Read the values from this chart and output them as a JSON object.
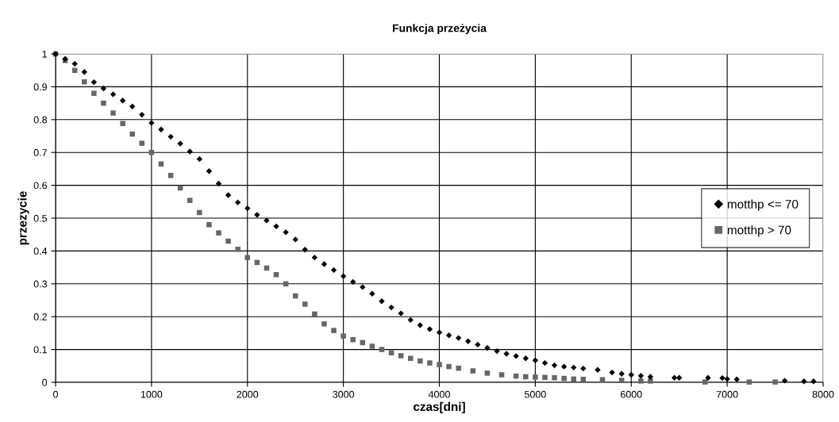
{
  "chart_data": {
    "type": "scatter",
    "title": "Funkcja przeżycia",
    "xlabel": "czas[dni]",
    "ylabel": "przezycie",
    "xlim": [
      0,
      8000
    ],
    "xticks": [
      0,
      1000,
      2000,
      3000,
      4000,
      5000,
      6000,
      7000,
      8000
    ],
    "ylim": [
      0,
      1
    ],
    "yticks": [
      0,
      0.1,
      0.2,
      0.3,
      0.4,
      0.5,
      0.6,
      0.7,
      0.8,
      0.9,
      1
    ],
    "grid": true,
    "legend": "right",
    "series": [
      {
        "name": "motthp <= 70",
        "color": "#000000",
        "marker": "diamond",
        "x": [
          0,
          100,
          200,
          300,
          400,
          500,
          600,
          700,
          800,
          900,
          1000,
          1100,
          1200,
          1300,
          1400,
          1500,
          1600,
          1700,
          1800,
          1900,
          2000,
          2100,
          2200,
          2300,
          2400,
          2500,
          2600,
          2700,
          2800,
          2900,
          3000,
          3100,
          3200,
          3300,
          3400,
          3500,
          3600,
          3700,
          3800,
          3900,
          4000,
          4100,
          4200,
          4300,
          4400,
          4500,
          4600,
          4700,
          4800,
          4900,
          5000,
          5100,
          5200,
          5300,
          5400,
          5500,
          5650,
          5800,
          5900,
          6000,
          6100,
          6200,
          6450,
          6500,
          6800,
          6950,
          7000,
          7100,
          7600,
          7800,
          7900
        ],
        "values": [
          1,
          0.985,
          0.97,
          0.945,
          0.914,
          0.895,
          0.877,
          0.858,
          0.84,
          0.815,
          0.79,
          0.77,
          0.748,
          0.727,
          0.703,
          0.68,
          0.643,
          0.605,
          0.57,
          0.548,
          0.53,
          0.51,
          0.493,
          0.475,
          0.457,
          0.435,
          0.404,
          0.38,
          0.36,
          0.342,
          0.323,
          0.306,
          0.29,
          0.27,
          0.247,
          0.228,
          0.21,
          0.19,
          0.174,
          0.162,
          0.152,
          0.143,
          0.135,
          0.125,
          0.115,
          0.105,
          0.095,
          0.087,
          0.08,
          0.073,
          0.067,
          0.059,
          0.052,
          0.048,
          0.045,
          0.042,
          0.038,
          0.03,
          0.026,
          0.023,
          0.02,
          0.017,
          0.014,
          0.014,
          0.014,
          0.013,
          0.01,
          0.009,
          0.005,
          0.003,
          0.003
        ]
      },
      {
        "name": "motthp > 70",
        "color": "#666666",
        "marker": "square",
        "x": [
          0,
          100,
          200,
          300,
          400,
          500,
          600,
          700,
          800,
          900,
          1000,
          1100,
          1200,
          1300,
          1400,
          1500,
          1600,
          1700,
          1800,
          1900,
          2000,
          2100,
          2200,
          2300,
          2400,
          2500,
          2600,
          2700,
          2800,
          2900,
          3000,
          3100,
          3200,
          3300,
          3400,
          3500,
          3600,
          3700,
          3800,
          3900,
          4000,
          4100,
          4200,
          4350,
          4500,
          4650,
          4800,
          4900,
          5000,
          5100,
          5200,
          5300,
          5400,
          5500,
          5700,
          5900,
          6100,
          6200,
          6770,
          7230,
          7500
        ],
        "values": [
          1,
          0.98,
          0.95,
          0.915,
          0.88,
          0.85,
          0.82,
          0.788,
          0.756,
          0.728,
          0.7,
          0.665,
          0.63,
          0.592,
          0.554,
          0.517,
          0.48,
          0.455,
          0.43,
          0.405,
          0.38,
          0.365,
          0.348,
          0.328,
          0.3,
          0.263,
          0.238,
          0.208,
          0.178,
          0.158,
          0.141,
          0.13,
          0.121,
          0.11,
          0.1,
          0.09,
          0.081,
          0.073,
          0.065,
          0.059,
          0.054,
          0.048,
          0.043,
          0.035,
          0.028,
          0.023,
          0.019,
          0.017,
          0.016,
          0.015,
          0.014,
          0.012,
          0.01,
          0.009,
          0.008,
          0.006,
          0.004,
          0.004,
          0.001,
          0.001,
          0.001
        ]
      }
    ]
  }
}
